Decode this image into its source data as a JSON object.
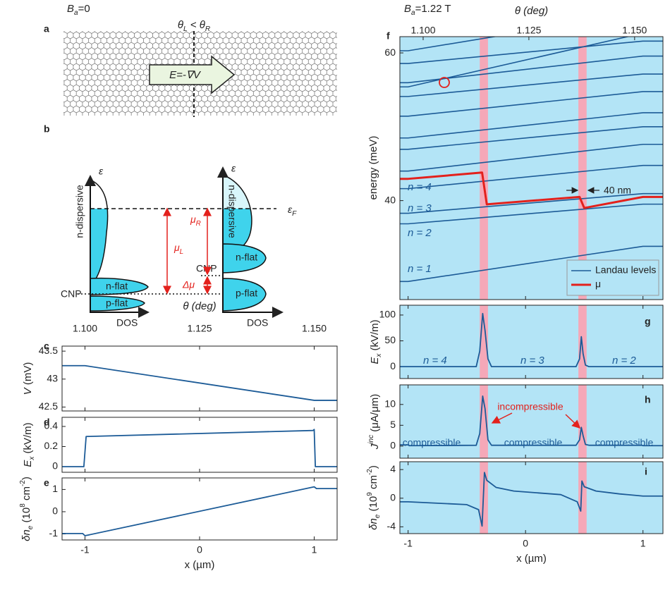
{
  "panel_a": {
    "panel_label": "a",
    "field": [
      "B",
      "a",
      "=0"
    ],
    "angle": [
      "θ",
      "L",
      " < θ",
      "R"
    ],
    "arrow": "E=-∇V"
  },
  "panel_b": {
    "panel_label": "b",
    "energy_left": "ε",
    "energy_right": "ε",
    "fermi": [
      "ε",
      "F"
    ],
    "left": {
      "dispersive": "n-dispersive",
      "n_flat": "n-flat",
      "p_flat": "p-flat",
      "cnp": "CNP",
      "dos": "DOS"
    },
    "right": {
      "dispersive": "n-dispersive",
      "n_flat": "n-flat",
      "p_flat": "p-flat",
      "cnp": "CNP",
      "dos": "DOS"
    },
    "mu_L": [
      "μ",
      "L"
    ],
    "mu_R": [
      "μ",
      "R"
    ],
    "delta_mu": "Δμ"
  },
  "chart_data": [
    {
      "type": "line",
      "panel_label": "c",
      "x": [
        -1.2,
        -1,
        1,
        1.2
      ],
      "values": [
        43.24,
        43.24,
        42.62,
        42.62
      ],
      "color": "#1c5b97",
      "xlim": [
        -1.2,
        1.2
      ],
      "xticks": [
        -1,
        0,
        1
      ],
      "ylim": [
        42.43,
        43.59
      ],
      "yticks": [
        42.5,
        43,
        43.5
      ],
      "ylabel": [
        "V",
        " (mV)"
      ],
      "x2lim": [
        1.095,
        1.155
      ],
      "x2ticks": [
        {
          "value": 1.1,
          "label": "1.100"
        },
        1.125,
        {
          "value": 1.15,
          "label": "1.150"
        }
      ],
      "x2label": "θ (deg)"
    },
    {
      "type": "line",
      "panel_label": "d",
      "x": [
        -1.2,
        -1.01,
        -0.99,
        0.99,
        1,
        1.01,
        1.2
      ],
      "values": [
        0,
        0,
        0.3,
        0.36,
        0.37,
        0,
        0
      ],
      "color": "#1c5b97",
      "xlim": [
        -1.2,
        1.2
      ],
      "xticks": [
        -1,
        0,
        1
      ],
      "ylim": [
        -0.056,
        0.491
      ],
      "yticks": [
        0,
        0.2,
        0.4
      ],
      "ylabel": [
        "E",
        "x",
        " (kV/m)"
      ]
    },
    {
      "type": "line",
      "panel_label": "e",
      "x": [
        -1.2,
        -1.02,
        -1,
        1,
        1.02,
        1.2
      ],
      "values": [
        -0.98,
        -0.98,
        -1.08,
        1.12,
        1.04,
        1.04
      ],
      "color": "#1c5b97",
      "xlim": [
        -1.2,
        1.2
      ],
      "xticks": [
        -1,
        0,
        1
      ],
      "ylim": [
        -1.27,
        1.52
      ],
      "yticks": [
        -1,
        0,
        1
      ],
      "ylabel": [
        "δn",
        "e",
        " (10",
        "8",
        " cm",
        "-2",
        ")"
      ],
      "xlabel": "x (µm)"
    },
    {
      "type": "line",
      "panel_label": "f",
      "title": [
        "B",
        "a",
        "=1.22 T"
      ],
      "x": [
        -1.07,
        -1,
        1,
        1.17
      ],
      "series": [
        {
          "name": "Landau levels",
          "color": "#1c5b97",
          "values": [
            [
              29.05,
              29.05,
              33.81,
              33.81
            ],
            [
              36.86,
              36.86,
              39.52,
              39.52
            ],
            [
              38.29,
              38.29,
              40.95,
              40.95
            ],
            [
              41.62,
              41.62,
              44.76,
              44.76
            ],
            [
              44.0,
              44.0,
              47.62,
              47.62
            ],
            [
              46.95,
              46.95,
              50.0,
              50.0
            ],
            [
              48.48,
              48.48,
              51.9,
              51.9
            ],
            [
              51.43,
              51.43,
              54.76,
              54.76
            ],
            [
              54.1,
              54.1,
              57.14,
              57.14
            ],
            [
              55.4,
              55.4,
              62.68,
              62.68
            ],
            [
              55.97,
              55.97,
              59.57,
              59.57
            ],
            [
              58.57,
              58.57,
              61.6,
              61.6
            ],
            [
              60.29,
              60.29,
              65.5,
              65.5
            ]
          ]
        },
        {
          "name": "μ",
          "color": "#e3211c",
          "x": [
            -1.07,
            -1,
            -0.37,
            -0.33,
            0.46,
            0.5,
            1,
            1.17
          ],
          "values": [
            42.95,
            42.95,
            43.8,
            39.5,
            40.5,
            39.0,
            40.5,
            40.5
          ]
        }
      ],
      "xlim": [
        -1.07,
        1.17
      ],
      "xticks": [
        -1,
        0,
        1
      ],
      "ylim": [
        26.6,
        62.2
      ],
      "yticks": [
        40,
        60
      ],
      "ylabel": "energy (meV)",
      "x2lim": [
        1.0945,
        1.1567
      ],
      "x2ticks": [
        {
          "value": 1.1,
          "label": "1.100"
        },
        1.125,
        {
          "value": 1.15,
          "label": "1.150"
        }
      ],
      "x2label": "θ (deg)",
      "background": "#b3e4f6",
      "bands": [
        [
          -0.39,
          -0.32
        ],
        [
          0.45,
          0.52
        ]
      ],
      "band_color": "#f5a8b8",
      "legend": "lower right",
      "annotations": [
        "n = 1",
        "n = 2",
        "n = 3",
        "n = 4",
        "40 nm"
      ]
    },
    {
      "type": "line",
      "panel_label": "g",
      "x": [
        -1.07,
        -1,
        -0.99,
        -0.42,
        -0.39,
        -0.365,
        -0.345,
        -0.32,
        -0.29,
        0.43,
        0.46,
        0.475,
        0.49,
        0.51,
        0.54,
        0.99,
        1,
        1.17
      ],
      "values": [
        0,
        0,
        0,
        0,
        30,
        103,
        70,
        15,
        0,
        0,
        15,
        58,
        25,
        3,
        0,
        0,
        0,
        0
      ],
      "color": "#1c5b97",
      "xlim": [
        -1.07,
        1.17
      ],
      "xticks": [
        -1,
        0,
        1
      ],
      "ylim": [
        -23,
        119
      ],
      "yticks": [
        0,
        50,
        100
      ],
      "ylabel": [
        "E",
        "x",
        " (kV/m)"
      ],
      "background": "#b3e4f6",
      "bands": [
        [
          -0.39,
          -0.32
        ],
        [
          0.45,
          0.52
        ]
      ],
      "band_color": "#f5a8b8",
      "annotations": [
        "n = 4",
        "n = 3",
        "n = 2"
      ]
    },
    {
      "type": "line",
      "panel_label": "h",
      "x": [
        -1.07,
        -1,
        -0.99,
        -0.42,
        -0.39,
        -0.365,
        -0.345,
        -0.32,
        -0.29,
        0.43,
        0.46,
        0.475,
        0.49,
        0.51,
        0.54,
        0.99,
        1,
        1.17
      ],
      "values": [
        0.3,
        0.3,
        0.1,
        0.2,
        3,
        12,
        9,
        1.5,
        0.2,
        0.2,
        1.5,
        4.5,
        2.5,
        0.4,
        0.2,
        0.2,
        0.1,
        0.1
      ],
      "color": "#1c5b97",
      "xlim": [
        -1.07,
        1.17
      ],
      "xticks": [
        -1,
        0,
        1
      ],
      "ylim": [
        -2.9,
        14.7
      ],
      "yticks": [
        0,
        5,
        10
      ],
      "ylabel": [
        "J",
        "inc",
        " (μA/μm)"
      ],
      "background": "#b3e4f6",
      "bands": [
        [
          -0.39,
          -0.32
        ],
        [
          0.45,
          0.52
        ]
      ],
      "band_color": "#f5a8b8",
      "annotations": [
        "incompressible",
        "compressible",
        "compressible",
        "compressible"
      ]
    },
    {
      "type": "line",
      "panel_label": "i",
      "x": [
        -1.07,
        -1,
        -0.5,
        -0.4,
        -0.37,
        -0.35,
        -0.33,
        -0.25,
        -0.1,
        0.3,
        0.44,
        0.47,
        0.48,
        0.5,
        0.6,
        0.8,
        1,
        1.17
      ],
      "values": [
        -0.5,
        -0.5,
        -0.9,
        -1.6,
        -3.9,
        3.6,
        2.5,
        1.5,
        1.0,
        0.5,
        -0.5,
        -1.8,
        2.4,
        1.6,
        1.0,
        0.6,
        0.3,
        0.3
      ],
      "color": "#1c5b97",
      "xlim": [
        -1.07,
        1.17
      ],
      "xticks": [
        -1,
        0,
        1
      ],
      "ylim": [
        -4.95,
        5.1
      ],
      "yticks": [
        -4,
        0,
        4
      ],
      "ylabel": [
        "δn",
        "e",
        " (10",
        "9",
        " cm",
        "-2",
        ")"
      ],
      "xlabel": "x (µm)",
      "background": "#b3e4f6",
      "bands": [
        [
          -0.39,
          -0.32
        ],
        [
          0.45,
          0.52
        ]
      ],
      "band_color": "#f5a8b8"
    }
  ]
}
